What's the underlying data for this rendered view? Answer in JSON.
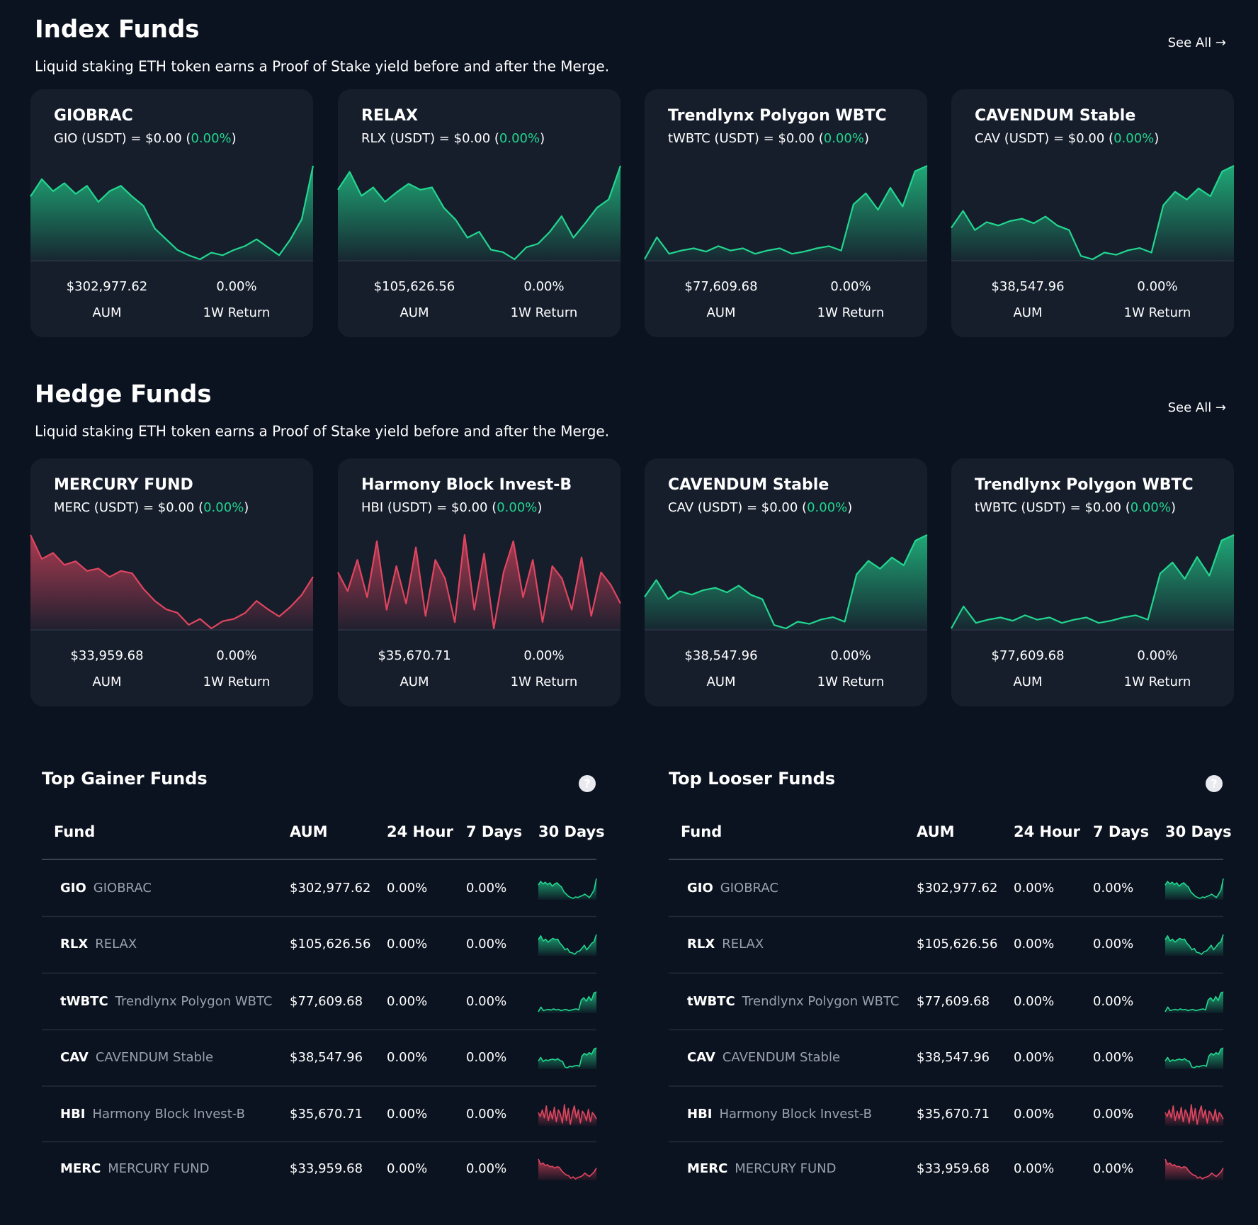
{
  "sections": [
    {
      "title": "Index Funds",
      "subtitle": "Liquid staking ETH token earns a Proof of Stake yield before and after the Merge.",
      "see_all": "See All →",
      "cards": [
        {
          "name": "GIOBRAC",
          "rate_prefix": "GIO (USDT) = $0.00 (",
          "change": "0.00%",
          "rate_suffix": ")",
          "aum": "$302,977.62",
          "aum_label": "AUM",
          "return": "0.00%",
          "return_label": "1W Return",
          "trend": {
            "color": "#22d68f",
            "values": [
              62,
              75,
              66,
              72,
              64,
              70,
              58,
              66,
              70,
              62,
              55,
              38,
              30,
              22,
              18,
              15,
              20,
              18,
              22,
              25,
              30,
              24,
              18,
              30,
              45,
              85
            ]
          }
        },
        {
          "name": "RELAX",
          "rate_prefix": "RLX (USDT) = $0.00 (",
          "change": "0.00%",
          "rate_suffix": ")",
          "aum": "$105,626.56",
          "aum_label": "AUM",
          "return": "0.00%",
          "return_label": "1W Return",
          "trend": {
            "color": "#22d68f",
            "values": [
              70,
              85,
              65,
              72,
              60,
              68,
              75,
              70,
              72,
              55,
              45,
              30,
              35,
              20,
              18,
              12,
              22,
              25,
              35,
              48,
              30,
              42,
              55,
              62,
              90
            ]
          }
        },
        {
          "name": "Trendlynx Polygon WBTC",
          "rate_prefix": "tWBTC (USDT) = $0.00 (",
          "change": "0.00%",
          "rate_suffix": ")",
          "aum": "$77,609.68",
          "aum_label": "AUM",
          "return": "0.00%",
          "return_label": "1W Return",
          "trend": {
            "color": "#22d68f",
            "values": [
              10,
              30,
              15,
              18,
              20,
              17,
              22,
              18,
              20,
              15,
              18,
              20,
              15,
              17,
              20,
              22,
              18,
              60,
              70,
              55,
              75,
              58,
              90,
              95
            ]
          }
        },
        {
          "name": "CAVENDUM Stable",
          "rate_prefix": "CAV (USDT) = $0.00 (",
          "change": "0.00%",
          "rate_suffix": ")",
          "aum": "$38,547.96",
          "aum_label": "AUM",
          "return": "0.00%",
          "return_label": "1W Return",
          "trend": {
            "color": "#22d68f",
            "values": [
              40,
              55,
              38,
              45,
              42,
              46,
              48,
              44,
              50,
              42,
              38,
              15,
              12,
              18,
              16,
              20,
              22,
              18,
              60,
              72,
              65,
              75,
              68,
              90,
              95
            ]
          }
        }
      ]
    },
    {
      "title": "Hedge Funds",
      "subtitle": "Liquid staking ETH token earns a Proof of Stake yield before and after the Merge.",
      "see_all": "See All →",
      "cards": [
        {
          "name": "MERCURY FUND",
          "rate_prefix": "MERC (USDT) = $0.00 (",
          "change": "0.00%",
          "rate_suffix": ")",
          "aum": "$33,959.68",
          "aum_label": "AUM",
          "return": "0.00%",
          "return_label": "1W Return",
          "trend": {
            "color": "#e0455f",
            "values": [
              90,
              70,
              75,
              65,
              68,
              60,
              62,
              55,
              60,
              58,
              45,
              35,
              28,
              25,
              15,
              20,
              12,
              18,
              20,
              25,
              35,
              28,
              22,
              30,
              40,
              55
            ]
          }
        },
        {
          "name": "Harmony Block Invest-B",
          "rate_prefix": "HBI (USDT) = $0.00 (",
          "change": "0.00%",
          "rate_suffix": ")",
          "aum": "$35,670.71",
          "aum_label": "AUM",
          "return": "0.00%",
          "return_label": "1W Return",
          "trend": {
            "color": "#e0455f",
            "values": [
              60,
              45,
              70,
              40,
              85,
              30,
              65,
              35,
              80,
              25,
              70,
              55,
              20,
              90,
              30,
              75,
              15,
              60,
              85,
              40,
              70,
              20,
              65,
              55,
              30,
              72,
              25,
              60,
              50,
              35
            ]
          }
        },
        {
          "name": "CAVENDUM Stable",
          "rate_prefix": "CAV (USDT) = $0.00 (",
          "change": "0.00%",
          "rate_suffix": ")",
          "aum": "$38,547.96",
          "aum_label": "AUM",
          "return": "0.00%",
          "return_label": "1W Return",
          "trend": {
            "color": "#22d68f",
            "values": [
              40,
              55,
              38,
              45,
              42,
              46,
              48,
              44,
              50,
              42,
              38,
              15,
              12,
              18,
              16,
              20,
              22,
              18,
              60,
              72,
              65,
              75,
              68,
              90,
              95
            ]
          }
        },
        {
          "name": "Trendlynx Polygon WBTC",
          "rate_prefix": "tWBTC (USDT) = $0.00 (",
          "change": "0.00%",
          "rate_suffix": ")",
          "aum": "$77,609.68",
          "aum_label": "AUM",
          "return": "0.00%",
          "return_label": "1W Return",
          "trend": {
            "color": "#22d68f",
            "values": [
              10,
              30,
              15,
              18,
              20,
              17,
              22,
              18,
              20,
              15,
              18,
              20,
              15,
              17,
              20,
              22,
              18,
              60,
              70,
              55,
              75,
              58,
              90,
              95
            ]
          }
        }
      ]
    }
  ],
  "tables": [
    {
      "title": "Top Gainer Funds",
      "help": "?",
      "columns": [
        "Fund",
        "AUM",
        "24 Hour",
        "7 Days",
        "30 Days"
      ],
      "rows": [
        {
          "code": "GIO",
          "name": "GIOBRAC",
          "aum": "$302,977.62",
          "h24": "0.00%",
          "d7": "0.00%",
          "trend": {
            "color": "#22d68f",
            "values": [
              62,
              75,
              66,
              72,
              64,
              70,
              58,
              66,
              70,
              62,
              55,
              38,
              30,
              22,
              18,
              15,
              20,
              18,
              22,
              25,
              30,
              24,
              18,
              30,
              45,
              85
            ]
          }
        },
        {
          "code": "RLX",
          "name": "RELAX",
          "aum": "$105,626.56",
          "h24": "0.00%",
          "d7": "0.00%",
          "trend": {
            "color": "#22d68f",
            "values": [
              70,
              85,
              65,
              72,
              60,
              68,
              75,
              70,
              72,
              55,
              45,
              30,
              35,
              20,
              18,
              12,
              22,
              25,
              35,
              48,
              30,
              42,
              55,
              62,
              90
            ]
          }
        },
        {
          "code": "tWBTC",
          "name": "Trendlynx Polygon WBTC",
          "aum": "$77,609.68",
          "h24": "0.00%",
          "d7": "0.00%",
          "trend": {
            "color": "#22d68f",
            "values": [
              10,
              30,
              15,
              18,
              20,
              17,
              22,
              18,
              20,
              15,
              18,
              20,
              15,
              17,
              20,
              22,
              18,
              60,
              70,
              55,
              75,
              58,
              90,
              95
            ]
          }
        },
        {
          "code": "CAV",
          "name": "CAVENDUM Stable",
          "aum": "$38,547.96",
          "h24": "0.00%",
          "d7": "0.00%",
          "trend": {
            "color": "#22d68f",
            "values": [
              40,
              55,
              38,
              45,
              42,
              46,
              48,
              44,
              50,
              42,
              38,
              15,
              12,
              18,
              16,
              20,
              22,
              18,
              60,
              72,
              65,
              75,
              68,
              90,
              95
            ]
          }
        },
        {
          "code": "HBI",
          "name": "Harmony Block Invest-B",
          "aum": "$35,670.71",
          "h24": "0.00%",
          "d7": "0.00%",
          "trend": {
            "color": "#e0455f",
            "values": [
              60,
              45,
              70,
              40,
              85,
              30,
              65,
              35,
              80,
              25,
              70,
              55,
              20,
              90,
              30,
              75,
              15,
              60,
              85,
              40,
              70,
              20,
              65,
              55,
              30,
              72,
              25,
              60,
              50,
              35
            ]
          }
        },
        {
          "code": "MERC",
          "name": "MERCURY FUND",
          "aum": "$33,959.68",
          "h24": "0.00%",
          "d7": "0.00%",
          "trend": {
            "color": "#e0455f",
            "values": [
              90,
              70,
              75,
              65,
              68,
              60,
              62,
              55,
              60,
              58,
              45,
              35,
              28,
              25,
              15,
              20,
              12,
              18,
              20,
              25,
              35,
              28,
              22,
              30,
              40,
              55
            ]
          }
        }
      ]
    },
    {
      "title": "Top Looser Funds",
      "help": "?",
      "columns": [
        "Fund",
        "AUM",
        "24 Hour",
        "7 Days",
        "30 Days"
      ],
      "rows": [
        {
          "code": "GIO",
          "name": "GIOBRAC",
          "aum": "$302,977.62",
          "h24": "0.00%",
          "d7": "0.00%",
          "trend": {
            "color": "#22d68f",
            "values": [
              62,
              75,
              66,
              72,
              64,
              70,
              58,
              66,
              70,
              62,
              55,
              38,
              30,
              22,
              18,
              15,
              20,
              18,
              22,
              25,
              30,
              24,
              18,
              30,
              45,
              85
            ]
          }
        },
        {
          "code": "RLX",
          "name": "RELAX",
          "aum": "$105,626.56",
          "h24": "0.00%",
          "d7": "0.00%",
          "trend": {
            "color": "#22d68f",
            "values": [
              70,
              85,
              65,
              72,
              60,
              68,
              75,
              70,
              72,
              55,
              45,
              30,
              35,
              20,
              18,
              12,
              22,
              25,
              35,
              48,
              30,
              42,
              55,
              62,
              90
            ]
          }
        },
        {
          "code": "tWBTC",
          "name": "Trendlynx Polygon WBTC",
          "aum": "$77,609.68",
          "h24": "0.00%",
          "d7": "0.00%",
          "trend": {
            "color": "#22d68f",
            "values": [
              10,
              30,
              15,
              18,
              20,
              17,
              22,
              18,
              20,
              15,
              18,
              20,
              15,
              17,
              20,
              22,
              18,
              60,
              70,
              55,
              75,
              58,
              90,
              95
            ]
          }
        },
        {
          "code": "CAV",
          "name": "CAVENDUM Stable",
          "aum": "$38,547.96",
          "h24": "0.00%",
          "d7": "0.00%",
          "trend": {
            "color": "#22d68f",
            "values": [
              40,
              55,
              38,
              45,
              42,
              46,
              48,
              44,
              50,
              42,
              38,
              15,
              12,
              18,
              16,
              20,
              22,
              18,
              60,
              72,
              65,
              75,
              68,
              90,
              95
            ]
          }
        },
        {
          "code": "HBI",
          "name": "Harmony Block Invest-B",
          "aum": "$35,670.71",
          "h24": "0.00%",
          "d7": "0.00%",
          "trend": {
            "color": "#e0455f",
            "values": [
              60,
              45,
              70,
              40,
              85,
              30,
              65,
              35,
              80,
              25,
              70,
              55,
              20,
              90,
              30,
              75,
              15,
              60,
              85,
              40,
              70,
              20,
              65,
              55,
              30,
              72,
              25,
              60,
              50,
              35
            ]
          }
        },
        {
          "code": "MERC",
          "name": "MERCURY FUND",
          "aum": "$33,959.68",
          "h24": "0.00%",
          "d7": "0.00%",
          "trend": {
            "color": "#e0455f",
            "values": [
              90,
              70,
              75,
              65,
              68,
              60,
              62,
              55,
              60,
              58,
              45,
              35,
              28,
              25,
              15,
              20,
              12,
              18,
              20,
              25,
              35,
              28,
              22,
              30,
              40,
              55
            ]
          }
        }
      ]
    }
  ]
}
